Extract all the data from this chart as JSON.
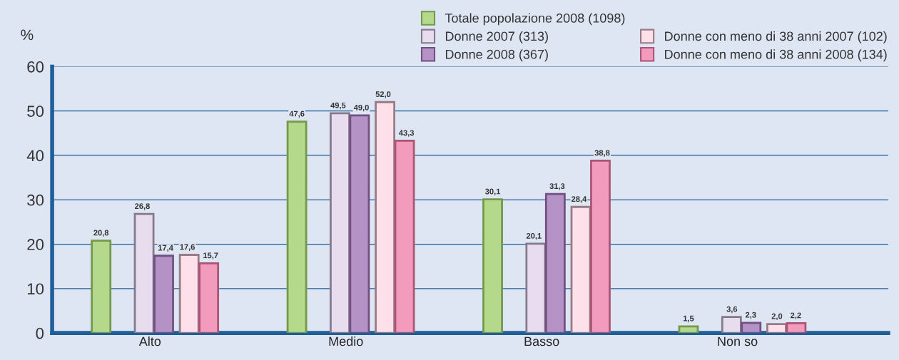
{
  "chart_data": {
    "type": "bar",
    "ylabel": "%",
    "categories": [
      "Alto",
      "Medio",
      "Basso",
      "Non so"
    ],
    "series": [
      {
        "name": "Totale popolazione 2008 (1098)",
        "color": "#b5d98b",
        "values": [
          20.8,
          47.6,
          30.1,
          1.5
        ],
        "value_labels": [
          "20,8",
          "47,6",
          "30,1",
          "1,5"
        ]
      },
      {
        "name": "Donne 2007 (313)",
        "color": "#e8dcef",
        "values": [
          26.8,
          49.5,
          20.1,
          3.6
        ],
        "value_labels": [
          "26,8",
          "49,5",
          "20,1",
          "3,6"
        ]
      },
      {
        "name": "Donne 2008 (367)",
        "color": "#b592c5",
        "values": [
          17.4,
          49.0,
          31.3,
          2.3
        ],
        "value_labels": [
          "17,4",
          "49,0",
          "31,3",
          "2,3"
        ]
      },
      {
        "name": "Donne con meno di 38 anni 2007 (102)",
        "color": "#fde0ea",
        "values": [
          17.6,
          52.0,
          28.4,
          2.0
        ],
        "value_labels": [
          "17,6",
          "52,0",
          "28,4",
          "2,0"
        ]
      },
      {
        "name": "Donne con meno di 38 anni 2008 (134)",
        "color": "#f29bbd",
        "values": [
          15.7,
          43.3,
          38.8,
          2.2
        ],
        "value_labels": [
          "15,7",
          "43,3",
          "38,8",
          "2,2"
        ]
      }
    ],
    "ylim": [
      0,
      60
    ],
    "yticks": [
      0,
      10,
      20,
      30,
      40,
      50,
      60
    ],
    "grid": "y",
    "legend": "top right"
  }
}
